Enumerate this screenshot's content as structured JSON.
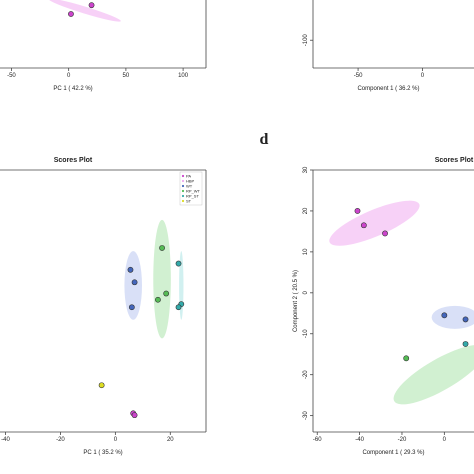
{
  "panel_letters": {
    "d": "d"
  },
  "chart_data": [
    {
      "type": "scatter",
      "panel": "top-left",
      "title": "",
      "xlabel": "PC 1 ( 42.2 %)",
      "ylabel": "",
      "x_ticks": [
        -50,
        0,
        50,
        100
      ],
      "y_ticks": [],
      "xlim": [
        -60,
        120
      ],
      "ylim": [
        -80,
        30
      ],
      "grid": false,
      "points": [
        {
          "x": 2,
          "y": -25,
          "color": "#cc44cc"
        },
        {
          "x": 20,
          "y": -16,
          "color": "#cc44cc"
        }
      ],
      "ellipses": [
        {
          "cx": 14,
          "cy": -21,
          "rx": 33,
          "ry": 3.5,
          "angle": -17,
          "color": "#ee99ee"
        }
      ]
    },
    {
      "type": "scatter",
      "panel": "top-right",
      "title": "",
      "xlabel": "Component 1 ( 36.2 %)",
      "ylabel": "",
      "x_ticks": [
        -50,
        0
      ],
      "y_ticks": [
        -100
      ],
      "xlim": [
        -85,
        40
      ],
      "ylim": [
        -145,
        30
      ],
      "grid": false,
      "points": [],
      "ellipses": []
    },
    {
      "type": "scatter",
      "panel": "bottom-left",
      "title": "Scores Plot",
      "xlabel": "PC 1 ( 35.2 %)",
      "ylabel": "",
      "x_ticks": [
        -40,
        -20,
        0,
        20
      ],
      "y_ticks": [],
      "xlim": [
        -42,
        33
      ],
      "ylim": [
        -24,
        18
      ],
      "grid": false,
      "legend": {
        "placement": "top-right",
        "entries": [
          {
            "label": "PA",
            "color": "#cc44cc"
          },
          {
            "label": "HBP",
            "color": "#eeaaee"
          },
          {
            "label": "WT",
            "color": "#4466bb"
          },
          {
            "label": "RP_WT",
            "color": "#55bb55"
          },
          {
            "label": "RP_ST",
            "color": "#33aaaa"
          },
          {
            "label": "ST",
            "color": "#dddd22"
          }
        ]
      },
      "points": [
        {
          "x": 5.5,
          "y": 2.0,
          "color": "#4466bb"
        },
        {
          "x": 7.0,
          "y": 0.0,
          "color": "#4466bb"
        },
        {
          "x": 6.0,
          "y": -4.0,
          "color": "#4466bb"
        },
        {
          "x": 17.0,
          "y": 5.5,
          "color": "#55bb55"
        },
        {
          "x": 18.5,
          "y": -1.8,
          "color": "#55bb55"
        },
        {
          "x": 15.5,
          "y": -2.8,
          "color": "#55bb55"
        },
        {
          "x": 23.0,
          "y": 3.0,
          "color": "#33aaaa"
        },
        {
          "x": 24.0,
          "y": -3.5,
          "color": "#33aaaa"
        },
        {
          "x": 23.0,
          "y": -4.0,
          "color": "#33aaaa"
        },
        {
          "x": -5.0,
          "y": -16.5,
          "color": "#dddd22"
        },
        {
          "x": 6.5,
          "y": -21.0,
          "color": "#cc44cc"
        },
        {
          "x": 7.0,
          "y": -21.3,
          "color": "#cc44cc"
        }
      ],
      "ellipses": [
        {
          "cx": 6.5,
          "cy": -0.5,
          "rx": 3.2,
          "ry": 5.5,
          "angle": 0,
          "color": "#aabbee"
        },
        {
          "cx": 17.0,
          "cy": 0.5,
          "rx": 3.2,
          "ry": 9.5,
          "angle": 0,
          "color": "#99dd99"
        },
        {
          "cx": 24.0,
          "cy": -0.5,
          "rx": 0.8,
          "ry": 5.5,
          "angle": 0,
          "color": "#99dddd"
        }
      ]
    },
    {
      "type": "scatter",
      "panel": "bottom-right",
      "title": "Scores Plot",
      "xlabel": "Component 1 ( 29.3 %)",
      "ylabel": "Component 2 ( 20.5 %)",
      "x_ticks": [
        -60,
        -40,
        -20,
        0
      ],
      "y_ticks": [
        30,
        20,
        10,
        0,
        -10,
        -20,
        -30
      ],
      "xlim": [
        -62,
        14
      ],
      "ylim": [
        -34,
        30
      ],
      "grid": false,
      "points": [
        {
          "x": -41,
          "y": 20,
          "color": "#cc44cc"
        },
        {
          "x": -38,
          "y": 16.5,
          "color": "#cc44cc"
        },
        {
          "x": -28,
          "y": 14.5,
          "color": "#cc44cc"
        },
        {
          "x": 0,
          "y": -5.5,
          "color": "#4466bb"
        },
        {
          "x": 10,
          "y": -6.5,
          "color": "#4466bb"
        },
        {
          "x": 10,
          "y": -12.5,
          "color": "#33aaaa"
        },
        {
          "x": -18,
          "y": -16,
          "color": "#55bb55"
        }
      ],
      "ellipses": [
        {
          "cx": -33,
          "cy": 17,
          "rx": 23,
          "ry": 3.2,
          "angle": 23,
          "color": "#ee99ee"
        },
        {
          "cx": 5,
          "cy": -6,
          "rx": 11,
          "ry": 2.8,
          "angle": 0,
          "color": "#aabbee"
        },
        {
          "cx": -2,
          "cy": -20,
          "rx": 25,
          "ry": 3.8,
          "angle": 30,
          "color": "#99dd99"
        }
      ]
    }
  ]
}
